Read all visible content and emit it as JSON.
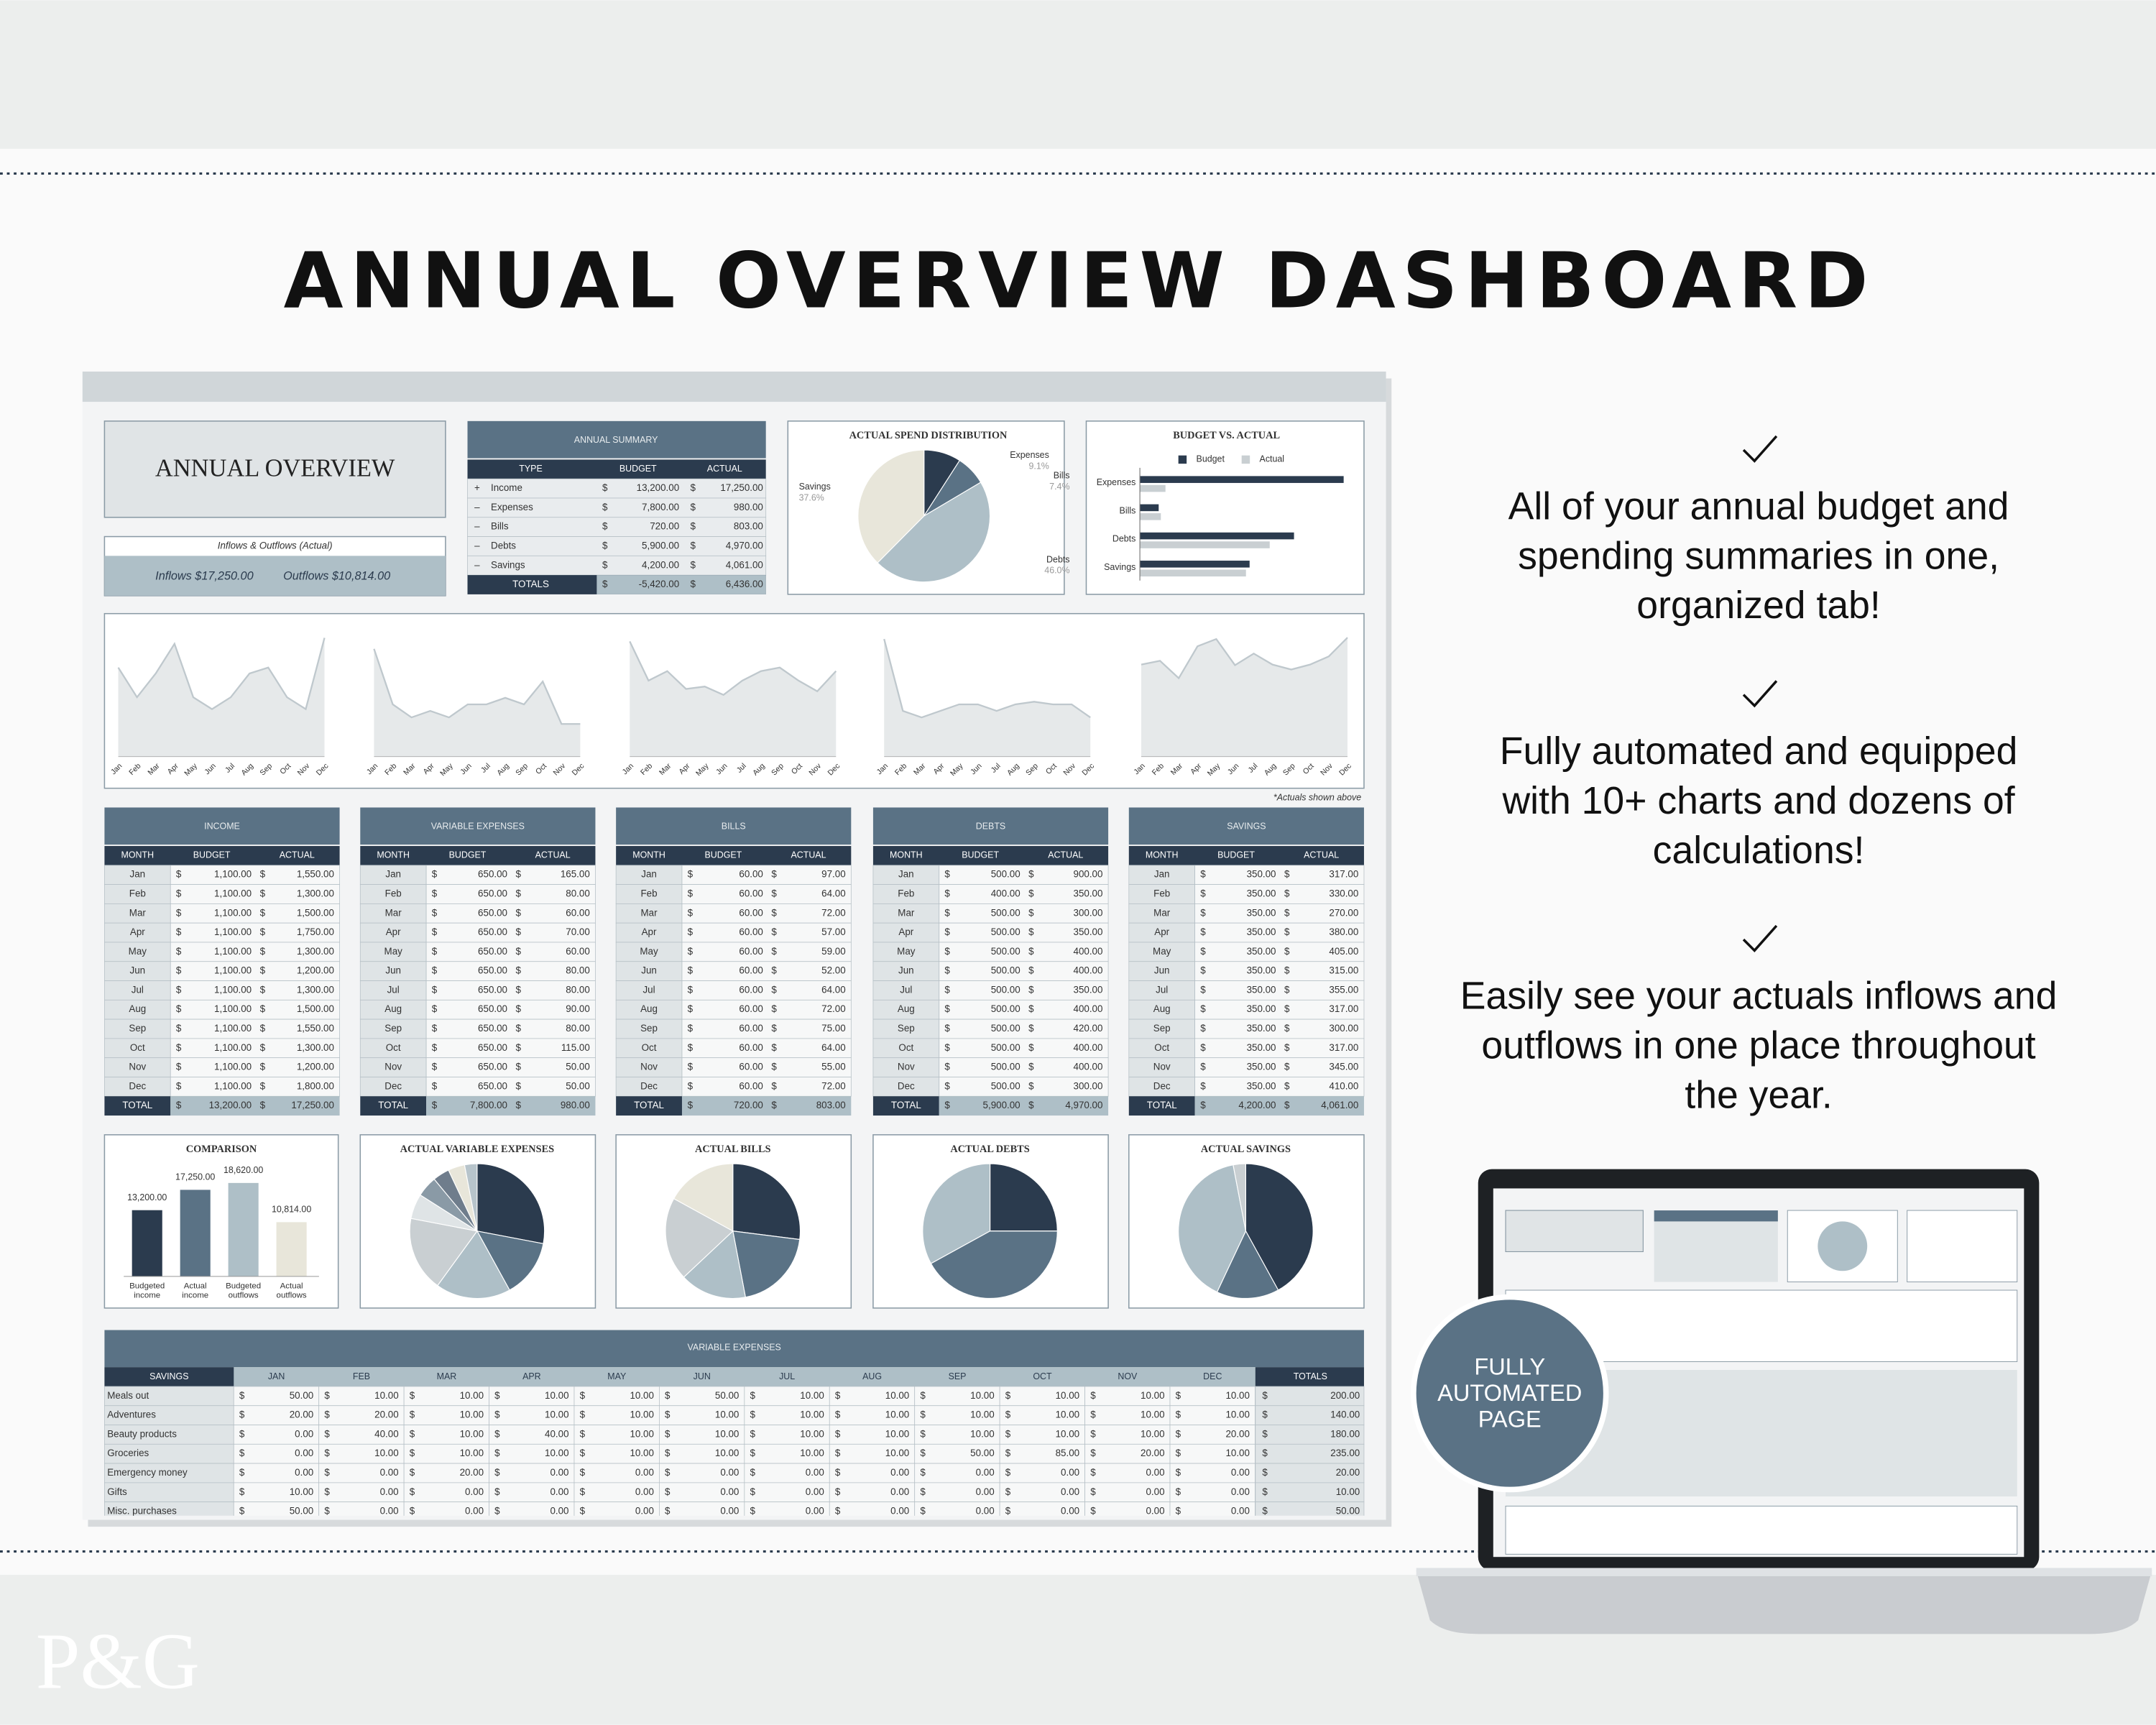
{
  "title": "ANNUAL OVERVIEW DASHBOARD",
  "currency": "$",
  "months": [
    "Jan",
    "Feb",
    "Mar",
    "Apr",
    "May",
    "Jun",
    "Jul",
    "Aug",
    "Sep",
    "Oct",
    "Nov",
    "Dec"
  ],
  "sheet_title": "ANNUAL OVERVIEW",
  "inflows_outflows": {
    "caption": "Inflows & Outflows (Actual)",
    "inflows": "Inflows $17,250.00",
    "outflows": "Outflows $10,814.00"
  },
  "annual_summary": {
    "title": "ANNUAL SUMMARY",
    "columns": [
      "TYPE",
      "BUDGET",
      "ACTUAL"
    ],
    "rows": [
      {
        "sign": "+",
        "type": "Income",
        "budget": "13,200.00",
        "actual": "17,250.00"
      },
      {
        "sign": "–",
        "type": "Expenses",
        "budget": "7,800.00",
        "actual": "980.00"
      },
      {
        "sign": "–",
        "type": "Bills",
        "budget": "720.00",
        "actual": "803.00"
      },
      {
        "sign": "–",
        "type": "Debts",
        "budget": "5,900.00",
        "actual": "4,970.00"
      },
      {
        "sign": "–",
        "type": "Savings",
        "budget": "4,200.00",
        "actual": "4,061.00"
      }
    ],
    "totals": {
      "label": "TOTALS",
      "budget": "-5,420.00",
      "actual": "6,436.00"
    }
  },
  "spend_distribution": {
    "title": "ACTUAL SPEND DISTRIBUTION",
    "slices": [
      {
        "name": "Expenses",
        "value": 9.1,
        "label": "9.1%",
        "color": "#2b3b4e"
      },
      {
        "name": "Bills",
        "value": 7.4,
        "label": "7.4%",
        "color": "#5a7285"
      },
      {
        "name": "Debts",
        "value": 46.0,
        "label": "46.0%",
        "color": "#aebfc7"
      },
      {
        "name": "Savings",
        "value": 37.6,
        "label": "37.6%",
        "color": "#e8e6da"
      }
    ]
  },
  "budget_vs_actual": {
    "title": "BUDGET VS. ACTUAL",
    "categories": [
      "Expenses",
      "Bills",
      "Debts",
      "Savings"
    ],
    "series": [
      {
        "name": "Budget",
        "color": "#2b3b4e",
        "values": [
          7800,
          720,
          5900,
          4200
        ]
      },
      {
        "name": "Actual",
        "color": "#c9cfd2",
        "values": [
          980,
          803,
          4970,
          4061
        ]
      }
    ],
    "xlim": [
      0,
      8000
    ]
  },
  "trend_charts": {
    "footnote": "*Actuals shown above",
    "fill": "#e6e9ea",
    "line_color": "#bfc8cd",
    "charts": [
      {
        "values": [
          1550,
          1300,
          1500,
          1750,
          1300,
          1200,
          1300,
          1500,
          1550,
          1300,
          1200,
          1800
        ],
        "ylim": [
          800,
          1900
        ]
      },
      {
        "values": [
          165,
          80,
          60,
          70,
          60,
          80,
          80,
          90,
          80,
          115,
          50,
          50
        ],
        "ylim": [
          0,
          200
        ]
      },
      {
        "values": [
          97,
          64,
          72,
          57,
          59,
          52,
          64,
          72,
          75,
          64,
          55,
          72
        ],
        "ylim": [
          0,
          110
        ]
      },
      {
        "values": [
          900,
          350,
          300,
          350,
          400,
          400,
          350,
          400,
          420,
          400,
          400,
          300
        ],
        "ylim": [
          0,
          1000
        ]
      },
      {
        "values": [
          317,
          330,
          270,
          380,
          405,
          315,
          355,
          317,
          300,
          317,
          345,
          410
        ],
        "ylim": [
          0,
          450
        ]
      }
    ]
  },
  "monthly_tables": {
    "columns": [
      "MONTH",
      "BUDGET",
      "ACTUAL"
    ],
    "total_label": "TOTAL",
    "tables": [
      {
        "title": "INCOME",
        "budget": [
          "1,100.00",
          "1,100.00",
          "1,100.00",
          "1,100.00",
          "1,100.00",
          "1,100.00",
          "1,100.00",
          "1,100.00",
          "1,100.00",
          "1,100.00",
          "1,100.00",
          "1,100.00"
        ],
        "actual": [
          "1,550.00",
          "1,300.00",
          "1,500.00",
          "1,750.00",
          "1,300.00",
          "1,200.00",
          "1,300.00",
          "1,500.00",
          "1,550.00",
          "1,300.00",
          "1,200.00",
          "1,800.00"
        ],
        "total_budget": "13,200.00",
        "total_actual": "17,250.00"
      },
      {
        "title": "VARIABLE EXPENSES",
        "budget": [
          "650.00",
          "650.00",
          "650.00",
          "650.00",
          "650.00",
          "650.00",
          "650.00",
          "650.00",
          "650.00",
          "650.00",
          "650.00",
          "650.00"
        ],
        "actual": [
          "165.00",
          "80.00",
          "60.00",
          "70.00",
          "60.00",
          "80.00",
          "80.00",
          "90.00",
          "80.00",
          "115.00",
          "50.00",
          "50.00"
        ],
        "total_budget": "7,800.00",
        "total_actual": "980.00"
      },
      {
        "title": "BILLS",
        "budget": [
          "60.00",
          "60.00",
          "60.00",
          "60.00",
          "60.00",
          "60.00",
          "60.00",
          "60.00",
          "60.00",
          "60.00",
          "60.00",
          "60.00"
        ],
        "actual": [
          "97.00",
          "64.00",
          "72.00",
          "57.00",
          "59.00",
          "52.00",
          "64.00",
          "72.00",
          "75.00",
          "64.00",
          "55.00",
          "72.00"
        ],
        "total_budget": "720.00",
        "total_actual": "803.00"
      },
      {
        "title": "DEBTS",
        "budget": [
          "500.00",
          "400.00",
          "500.00",
          "500.00",
          "500.00",
          "500.00",
          "500.00",
          "500.00",
          "500.00",
          "500.00",
          "500.00",
          "500.00"
        ],
        "actual": [
          "900.00",
          "350.00",
          "300.00",
          "350.00",
          "400.00",
          "400.00",
          "350.00",
          "400.00",
          "420.00",
          "400.00",
          "400.00",
          "300.00"
        ],
        "total_budget": "5,900.00",
        "total_actual": "4,970.00"
      },
      {
        "title": "SAVINGS",
        "budget": [
          "350.00",
          "350.00",
          "350.00",
          "350.00",
          "350.00",
          "350.00",
          "350.00",
          "350.00",
          "350.00",
          "350.00",
          "350.00",
          "350.00"
        ],
        "actual": [
          "317.00",
          "330.00",
          "270.00",
          "380.00",
          "405.00",
          "315.00",
          "355.00",
          "317.00",
          "300.00",
          "317.00",
          "345.00",
          "410.00"
        ],
        "total_budget": "4,200.00",
        "total_actual": "4,061.00"
      }
    ]
  },
  "comparison": {
    "title": "COMPARISON",
    "categories": [
      [
        "Budgeted",
        "income"
      ],
      [
        "Actual",
        "income"
      ],
      [
        "Budgeted",
        "outflows"
      ],
      [
        "Actual",
        "outflows"
      ]
    ],
    "values": [
      13200,
      17250,
      18620,
      10814
    ],
    "value_labels": [
      "13,200.00",
      "17,250.00",
      "18,620.00",
      "10,814.00"
    ],
    "colors": [
      "#2b3b4e",
      "#5a7285",
      "#aebfc7",
      "#e8e6da"
    ],
    "ylim": [
      0,
      20000
    ]
  },
  "pies": [
    {
      "title": "ACTUAL VARIABLE EXPENSES",
      "values": [
        28,
        14,
        18,
        18,
        6,
        5,
        4,
        4,
        3
      ],
      "colors": [
        "#2b3b4e",
        "#5a7285",
        "#aebfc7",
        "#c9cfd2",
        "#dfe4e6",
        "#8a9aa6",
        "#6f7d8c",
        "#e8e6da",
        "#b7c4cb"
      ]
    },
    {
      "title": "ACTUAL BILLS",
      "values": [
        27,
        20,
        16,
        20,
        17
      ],
      "colors": [
        "#2b3b4e",
        "#5a7285",
        "#aebfc7",
        "#c9cfd2",
        "#e8e6da"
      ]
    },
    {
      "title": "ACTUAL DEBTS",
      "values": [
        25,
        42,
        33
      ],
      "colors": [
        "#2b3b4e",
        "#5a7285",
        "#aebfc7"
      ]
    },
    {
      "title": "ACTUAL SAVINGS",
      "values": [
        42,
        15,
        40,
        3
      ],
      "colors": [
        "#2b3b4e",
        "#5a7285",
        "#aebfc7",
        "#c9cfd2"
      ]
    }
  ],
  "variable_expenses": {
    "title": "VARIABLE EXPENSES",
    "columns": [
      "SAVINGS",
      "JAN",
      "FEB",
      "MAR",
      "APR",
      "MAY",
      "JUN",
      "JUL",
      "AUG",
      "SEP",
      "OCT",
      "NOV",
      "DEC",
      "TOTALS"
    ],
    "rows": [
      {
        "label": "Meals out",
        "values": [
          "50.00",
          "10.00",
          "10.00",
          "10.00",
          "10.00",
          "50.00",
          "10.00",
          "10.00",
          "10.00",
          "10.00",
          "10.00",
          "10.00"
        ],
        "total": "200.00"
      },
      {
        "label": "Adventures",
        "values": [
          "20.00",
          "20.00",
          "10.00",
          "10.00",
          "10.00",
          "10.00",
          "10.00",
          "10.00",
          "10.00",
          "10.00",
          "10.00",
          "10.00"
        ],
        "total": "140.00"
      },
      {
        "label": "Beauty products",
        "values": [
          "0.00",
          "40.00",
          "10.00",
          "40.00",
          "10.00",
          "10.00",
          "10.00",
          "10.00",
          "10.00",
          "10.00",
          "10.00",
          "20.00"
        ],
        "total": "180.00"
      },
      {
        "label": "Groceries",
        "values": [
          "0.00",
          "10.00",
          "10.00",
          "10.00",
          "10.00",
          "10.00",
          "10.00",
          "10.00",
          "50.00",
          "85.00",
          "20.00",
          "10.00"
        ],
        "total": "235.00"
      },
      {
        "label": "Emergency money",
        "values": [
          "0.00",
          "0.00",
          "20.00",
          "0.00",
          "0.00",
          "0.00",
          "0.00",
          "0.00",
          "0.00",
          "0.00",
          "0.00",
          "0.00"
        ],
        "total": "20.00"
      },
      {
        "label": "Gifts",
        "values": [
          "10.00",
          "0.00",
          "0.00",
          "0.00",
          "0.00",
          "0.00",
          "0.00",
          "0.00",
          "0.00",
          "0.00",
          "0.00",
          "0.00"
        ],
        "total": "10.00"
      },
      {
        "label": "Misc. purchases",
        "values": [
          "50.00",
          "0.00",
          "0.00",
          "0.00",
          "0.00",
          "0.00",
          "0.00",
          "0.00",
          "0.00",
          "0.00",
          "0.00",
          "0.00"
        ],
        "total": "50.00"
      }
    ]
  },
  "features": [
    {
      "lines": [
        "All of your annual budget and",
        "spending summaries in one,",
        "organized tab!"
      ]
    },
    {
      "lines": [
        "Fully automated and equipped",
        "with 10+ charts and dozens of",
        "calculations!"
      ]
    },
    {
      "lines": [
        "Easily see your actuals inflows and",
        "outflows in one place throughout",
        "the year."
      ]
    }
  ],
  "badge": [
    "FULLY",
    "AUTOMATED",
    "PAGE"
  ],
  "logo": "P&G"
}
